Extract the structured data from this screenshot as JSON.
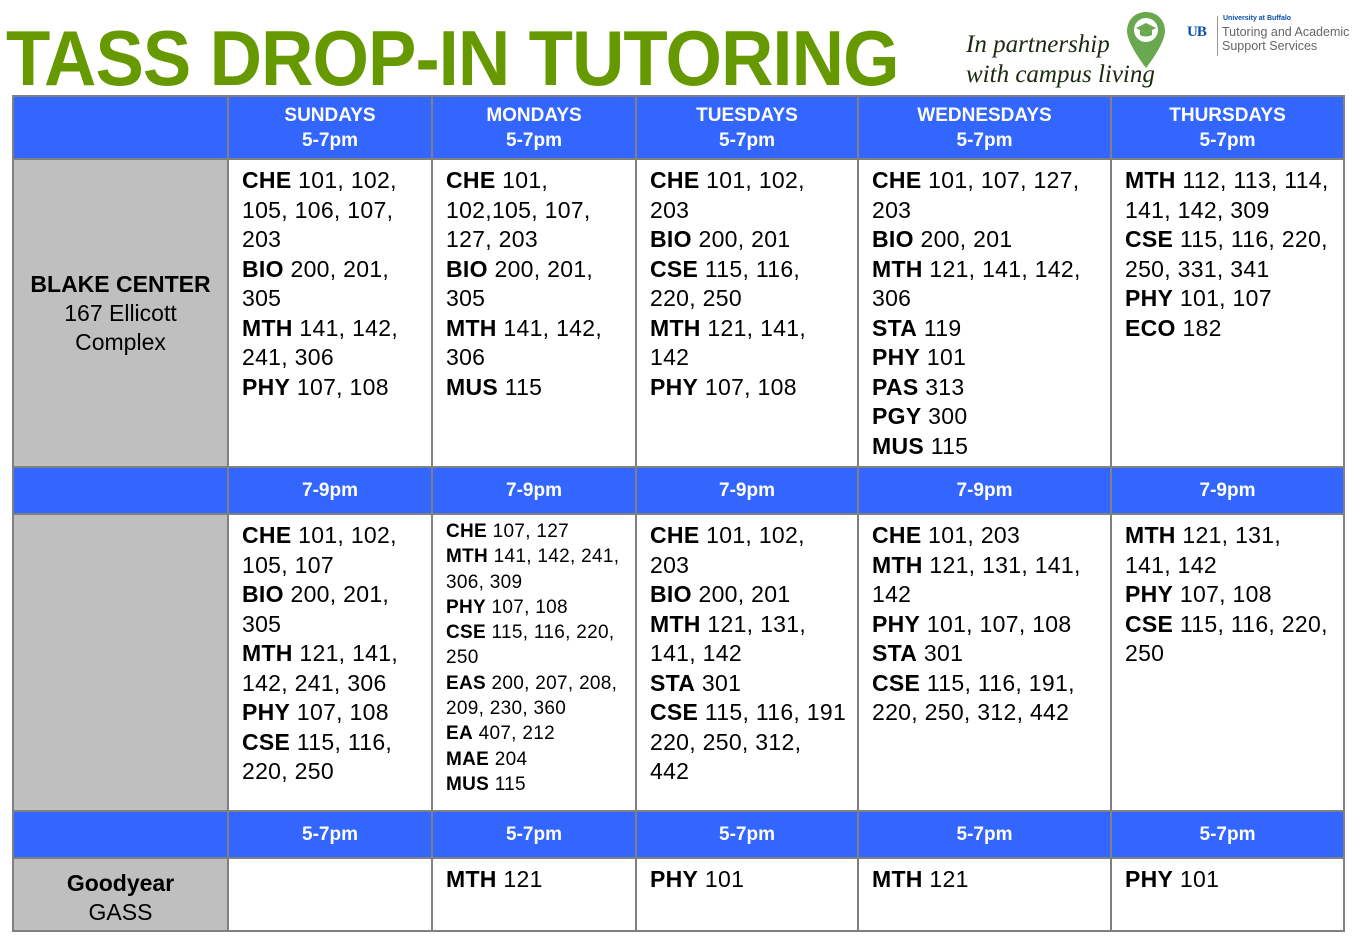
{
  "header": {
    "title": "TASS DROP-IN TUTORING",
    "partnership_line1": "In partnership",
    "partnership_line2": "with campus living",
    "logo_university": "University at Buffalo",
    "logo_name": "Tutoring and Academic Support Services",
    "logo_mark": "UB"
  },
  "colors": {
    "title_green": "#669900",
    "header_blue": "#3366FF",
    "label_gray": "#BFBFBF",
    "border": "#808080"
  },
  "days": [
    {
      "name": "SUNDAYS",
      "time": "5-7pm"
    },
    {
      "name": "MONDAYS",
      "time": "5-7pm"
    },
    {
      "name": "TUESDAYS",
      "time": "5-7pm"
    },
    {
      "name": "WEDNESDAYS",
      "time": "5-7pm"
    },
    {
      "name": "THURSDAYS",
      "time": "5-7pm"
    }
  ],
  "blocks": [
    {
      "location": "BLAKE CENTER",
      "sublabel": "167 Ellicott Complex",
      "cells": [
        [
          {
            "s": "CHE",
            "c": "101, 102, 105, 106, 107, 203"
          },
          {
            "s": "BIO",
            "c": "200, 201, 305"
          },
          {
            "s": "MTH",
            "c": "141, 142, 241, 306"
          },
          {
            "s": "PHY",
            "c": "107, 108"
          }
        ],
        [
          {
            "s": "CHE",
            "c": "101, 102,105, 107, 127, 203"
          },
          {
            "s": "BIO",
            "c": "200, 201, 305"
          },
          {
            "s": "MTH",
            "c": "141, 142, 306"
          },
          {
            "s": "MUS",
            "c": "115"
          }
        ],
        [
          {
            "s": "CHE",
            "c": "101, 102, 203"
          },
          {
            "s": "BIO",
            "c": "200, 201"
          },
          {
            "s": "CSE",
            "c": "115, 116, 220, 250"
          },
          {
            "s": "MTH",
            "c": "121, 141, 142"
          },
          {
            "s": "PHY",
            "c": "107, 108"
          }
        ],
        [
          {
            "s": "CHE",
            "c": "101, 107, 127, 203"
          },
          {
            "s": "BIO",
            "c": "200, 201"
          },
          {
            "s": "MTH",
            "c": "121, 141, 142, 306"
          },
          {
            "s": "STA",
            "c": "119"
          },
          {
            "s": "PHY",
            "c": "101"
          },
          {
            "s": "PAS",
            "c": "313"
          },
          {
            "s": "PGY",
            "c": "300"
          },
          {
            "s": "MUS",
            "c": "115"
          }
        ],
        [
          {
            "s": "MTH",
            "c": "112, 113, 114, 141, 142, 309"
          },
          {
            "s": "CSE",
            "c": "115, 116, 220, 250, 331, 341"
          },
          {
            "s": "PHY",
            "c": "101, 107"
          },
          {
            "s": "ECO",
            "c": "182"
          }
        ]
      ]
    },
    {
      "time": "7-9pm",
      "location": "",
      "sublabel": "",
      "cells": [
        [
          {
            "s": "CHE",
            "c": "101, 102, 105, 107"
          },
          {
            "s": "BIO",
            "c": "200, 201, 305"
          },
          {
            "s": "MTH",
            "c": "121, 141, 142, 241, 306"
          },
          {
            "s": "PHY",
            "c": "107, 108"
          },
          {
            "s": "CSE",
            "c": "115, 116, 220, 250"
          }
        ],
        [
          {
            "s": "CHE",
            "c": "107, 127"
          },
          {
            "s": "MTH",
            "c": "141, 142, 241, 306, 309"
          },
          {
            "s": "PHY",
            "c": "107, 108"
          },
          {
            "s": "CSE",
            "c": "115, 116, 220, 250"
          },
          {
            "s": "EAS",
            "c": "200, 207, 208, 209, 230, 360"
          },
          {
            "s": "EA",
            "c": "407, 212"
          },
          {
            "s": "MAE",
            "c": "204"
          },
          {
            "s": "MUS",
            "c": "115"
          }
        ],
        [
          {
            "s": "CHE",
            "c": "101, 102, 203"
          },
          {
            "s": "BIO",
            "c": "200, 201"
          },
          {
            "s": "MTH",
            "c": "121, 131, 141, 142"
          },
          {
            "s": "STA",
            "c": "301"
          },
          {
            "s": "CSE",
            "c": "115, 116, 191 220, 250, 312, 442"
          }
        ],
        [
          {
            "s": "CHE",
            "c": "101, 203"
          },
          {
            "s": "MTH",
            "c": "121, 131, 141, 142"
          },
          {
            "s": "PHY",
            "c": "101, 107, 108"
          },
          {
            "s": "STA",
            "c": "301"
          },
          {
            "s": "CSE",
            "c": "115, 116, 191, 220, 250, 312, 442"
          }
        ],
        [
          {
            "s": "MTH",
            "c": "121, 131, 141, 142"
          },
          {
            "s": "PHY",
            "c": "107, 108"
          },
          {
            "s": "CSE",
            "c": "115, 116, 220, 250"
          }
        ]
      ]
    },
    {
      "time": "5-7pm",
      "location": "Goodyear",
      "sublabel": "GASS",
      "cells": [
        [],
        [
          {
            "s": "MTH",
            "c": "121"
          }
        ],
        [
          {
            "s": "PHY",
            "c": "101"
          }
        ],
        [
          {
            "s": "MTH",
            "c": "121"
          }
        ],
        [
          {
            "s": "PHY",
            "c": "101"
          }
        ]
      ]
    }
  ]
}
